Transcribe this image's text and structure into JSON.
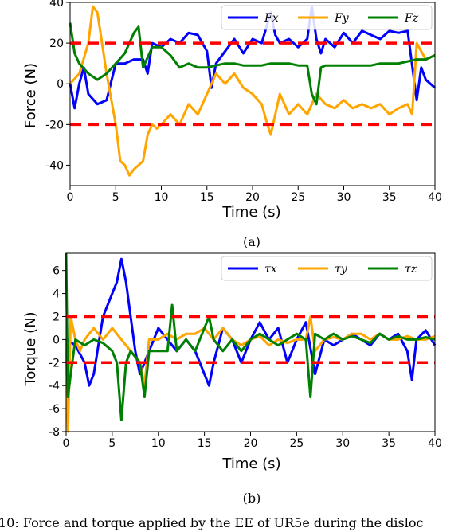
{
  "figure": {
    "caption": "10: Force and torque applied by the EE of UR5e during the disloc"
  },
  "chart_data": [
    {
      "type": "line",
      "sublabel": "(a)",
      "xlabel": "Time (s)",
      "ylabel": "Force (N)",
      "xlim": [
        0,
        40
      ],
      "ylim": [
        -50,
        40
      ],
      "xticks": [
        "0",
        "5",
        "10",
        "15",
        "20",
        "25",
        "30",
        "35",
        "40"
      ],
      "yticks": [
        "40",
        "20",
        "0",
        "-20",
        "-40"
      ],
      "threshold_lines": [
        20,
        -20
      ],
      "threshold_color": "#ff0000",
      "legend_position": "top-right",
      "series": [
        {
          "name": "Fx",
          "color": "#0000ff",
          "x": [
            0,
            0.5,
            1,
            1.5,
            2,
            3,
            4,
            5,
            6,
            7,
            8,
            8.5,
            9,
            10,
            11,
            12,
            13,
            14,
            15,
            15.5,
            16,
            17,
            18,
            19,
            20,
            21,
            22,
            22.5,
            23,
            24,
            25,
            26,
            26.5,
            27,
            27.5,
            28,
            29,
            30,
            31,
            32,
            33,
            34,
            35,
            36,
            37,
            38,
            38.5,
            39,
            40
          ],
          "y": [
            0,
            -12,
            0,
            8,
            -5,
            -10,
            -8,
            10,
            10,
            12,
            12,
            5,
            20,
            18,
            22,
            20,
            25,
            24,
            16,
            -2,
            10,
            16,
            22,
            15,
            22,
            20,
            35,
            24,
            20,
            22,
            18,
            22,
            38,
            22,
            15,
            22,
            18,
            25,
            20,
            26,
            24,
            22,
            26,
            25,
            26,
            -8,
            8,
            2,
            -2
          ]
        },
        {
          "name": "Fy",
          "color": "#ffa500",
          "x": [
            0,
            1,
            2,
            2.5,
            3,
            3.5,
            4,
            5,
            5.5,
            6,
            6.5,
            7,
            8,
            8.5,
            9,
            9.5,
            10,
            11,
            12,
            13,
            14,
            15,
            16,
            17,
            18,
            19,
            20,
            21,
            21.5,
            22,
            23,
            24,
            25,
            26,
            27,
            28,
            29,
            30,
            31,
            32,
            33,
            34,
            35,
            36,
            37,
            37.5,
            38,
            39,
            40
          ],
          "y": [
            0,
            5,
            20,
            38,
            35,
            20,
            5,
            -20,
            -38,
            -40,
            -45,
            -42,
            -38,
            -25,
            -20,
            -22,
            -20,
            -15,
            -20,
            -10,
            -15,
            -5,
            5,
            0,
            5,
            -2,
            -5,
            -10,
            -18,
            -25,
            -5,
            -15,
            -10,
            -15,
            -5,
            -10,
            -12,
            -8,
            -12,
            -10,
            -12,
            -10,
            -15,
            -12,
            -10,
            -15,
            20,
            12,
            14
          ]
        },
        {
          "name": "Fz",
          "color": "#008000",
          "x": [
            0,
            0.5,
            1,
            2,
            3,
            4,
            5,
            6,
            7,
            7.5,
            8,
            9,
            10,
            11,
            12,
            13,
            14,
            15,
            16,
            17,
            18,
            19,
            20,
            21,
            22,
            23,
            24,
            25,
            26,
            26.5,
            27,
            27.5,
            28,
            29,
            30,
            31,
            32,
            33,
            34,
            35,
            36,
            37,
            38,
            39,
            40
          ],
          "y": [
            30,
            15,
            10,
            5,
            2,
            5,
            10,
            15,
            25,
            28,
            8,
            18,
            18,
            14,
            8,
            10,
            8,
            8,
            9,
            10,
            10,
            9,
            9,
            9,
            10,
            10,
            10,
            9,
            9,
            -5,
            -10,
            8,
            9,
            9,
            9,
            9,
            9,
            9,
            10,
            10,
            10,
            11,
            12,
            12,
            14
          ]
        }
      ]
    },
    {
      "type": "line",
      "sublabel": "(b)",
      "xlabel": "Time (s)",
      "ylabel": "Torque (N)",
      "xlim": [
        0,
        40
      ],
      "ylim": [
        -8,
        7.5
      ],
      "xticks": [
        "0",
        "5",
        "10",
        "15",
        "20",
        "25",
        "30",
        "35",
        "40"
      ],
      "yticks": [
        "6",
        "4",
        "2",
        "0",
        "-2",
        "-4",
        "-6",
        "-8"
      ],
      "threshold_lines": [
        2,
        -2
      ],
      "threshold_color": "#ff0000",
      "legend_position": "top-right",
      "series": [
        {
          "name": "τx",
          "color": "#0000ff",
          "x": [
            0,
            1,
            2,
            2.5,
            3,
            4,
            5,
            5.5,
            6,
            6.5,
            7,
            7.5,
            8,
            9,
            10,
            11,
            12,
            13,
            14,
            15,
            15.5,
            16,
            17,
            18,
            19,
            20,
            21,
            22,
            23,
            24,
            25,
            26,
            27,
            28,
            29,
            30,
            31,
            32,
            33,
            34,
            35,
            36,
            37,
            37.5,
            38,
            39,
            40
          ],
          "y": [
            0,
            -0.5,
            -2,
            -4,
            -3,
            2,
            4,
            5,
            7,
            5,
            2,
            -1,
            -3,
            -1,
            1,
            0,
            -1,
            0,
            -1,
            -3,
            -4,
            -2,
            1,
            0,
            -2,
            0,
            1.5,
            0,
            1,
            -2,
            0,
            1.5,
            -3,
            0,
            -0.5,
            0,
            0.5,
            0,
            -0.5,
            0.5,
            0,
            0.5,
            -1,
            -3.5,
            0,
            0.8,
            -0.5
          ]
        },
        {
          "name": "τy",
          "color": "#ffa500",
          "x": [
            0,
            0.2,
            0.5,
            1,
            1.5,
            2,
            3,
            4,
            5,
            6,
            7,
            8,
            8.5,
            9,
            10,
            11,
            12,
            13,
            14,
            15,
            16,
            17,
            18,
            19,
            20,
            21,
            22,
            23,
            24,
            25,
            26,
            26.5,
            27,
            28,
            29,
            30,
            31,
            32,
            33,
            34,
            35,
            36,
            37,
            38,
            39,
            40
          ],
          "y": [
            0,
            -8,
            2,
            0,
            -1,
            0,
            1,
            0,
            1,
            0,
            -1,
            -2,
            -4,
            0,
            0,
            0.5,
            0,
            0.5,
            0.5,
            1,
            0,
            1,
            0,
            -0.5,
            0,
            0.3,
            -0.5,
            0,
            -0.3,
            0,
            0,
            2,
            -1,
            0,
            0.2,
            0,
            0.5,
            0.5,
            0,
            0.5,
            0,
            0,
            0.3,
            0,
            0,
            0.3
          ]
        },
        {
          "name": "τz",
          "color": "#008000",
          "x": [
            0,
            0.2,
            0.5,
            1,
            2,
            3,
            4,
            5,
            5.5,
            6,
            6.5,
            7,
            8,
            8.5,
            9,
            10,
            11,
            11.5,
            12,
            13,
            14,
            15,
            15.5,
            16,
            17,
            18,
            19,
            20,
            21,
            22,
            23,
            24,
            25,
            26,
            26.5,
            27,
            28,
            29,
            30,
            31,
            32,
            33,
            34,
            35,
            36,
            37,
            38,
            39,
            40
          ],
          "y": [
            7.5,
            -5,
            -3,
            0,
            -0.5,
            0,
            -0.3,
            -1,
            -2,
            -7,
            -2,
            -1,
            -2,
            -5,
            -1,
            -1,
            -1,
            3,
            -1,
            0,
            -1,
            1,
            2,
            0,
            -1,
            0,
            -1,
            0,
            0.5,
            0,
            -0.5,
            0,
            0.5,
            0,
            -5,
            0.5,
            0,
            0.5,
            0,
            0.3,
            0,
            -0.3,
            0.5,
            0,
            0.3,
            0,
            0,
            0.2,
            0
          ]
        }
      ]
    }
  ]
}
